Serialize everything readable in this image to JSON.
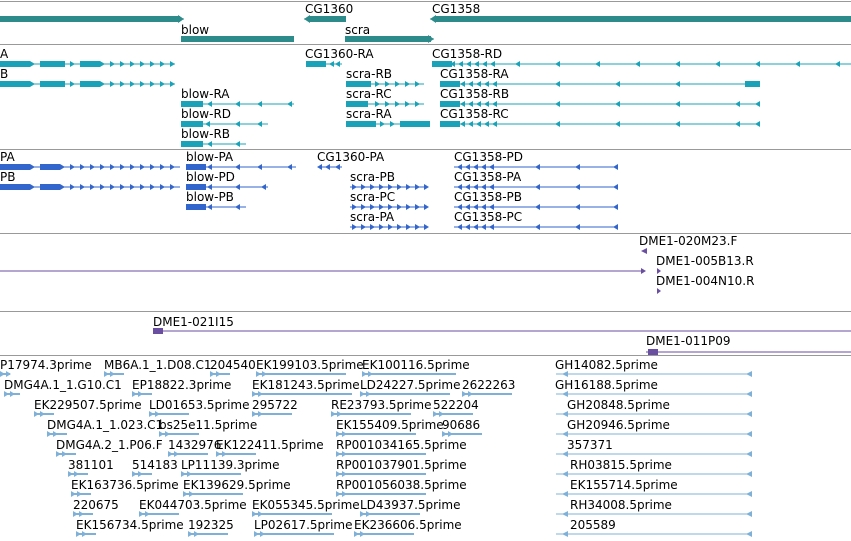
{
  "colors": {
    "gene": "#2e8b8b",
    "transcript": "#1aa3b8",
    "protein": "#3366cc",
    "clone": "#6a4ea0",
    "est": "#7fb1d8",
    "divider": "#999999"
  },
  "tracks": {
    "genes": {
      "labels": [
        "CG1360",
        "CG1358",
        "blow",
        "scra"
      ]
    },
    "transcripts": {
      "labels": [
        "A",
        "B",
        "CG1360-RA",
        "CG1358-RD",
        "scra-RB",
        "CG1358-RA",
        "blow-RA",
        "scra-RC",
        "CG1358-RB",
        "blow-RD",
        "scra-RA",
        "CG1358-RC",
        "blow-RB"
      ]
    },
    "proteins": {
      "labels": [
        "PA",
        "blow-PA",
        "CG1360-PA",
        "CG1358-PD",
        "PB",
        "blow-PD",
        "scra-PB",
        "CG1358-PA",
        "blow-PB",
        "scra-PC",
        "CG1358-PB",
        "scra-PA",
        "CG1358-PC"
      ]
    },
    "clones_a": {
      "labels": [
        "DME1-020M23.F",
        "DME1-005B13.R",
        "DME1-004N10.R"
      ]
    },
    "clones_b": {
      "labels": [
        "DME1-021I15",
        "DME1-011P09"
      ]
    },
    "ests": {
      "labels": [
        "P17974.3prime",
        "MB6A.1_1.D08.C1",
        "204540",
        "EK199103.5prime",
        "EK100116.5prime",
        "GH14082.5prime",
        "DMG4A.1_1.G10.C1",
        "EP18822.3prime",
        "EK181243.5prime",
        "LD24227.5prime",
        "2622263",
        "GH16188.5prime",
        "EK229507.5prime",
        "LD01653.5prime",
        "295722",
        "RE23793.5prime",
        "522204",
        "GH20848.5prime",
        "DMG4A.1_1.023.C1",
        "bs25e11.5prime",
        "EK155409.5prime",
        "90686",
        "GH20946.5prime",
        "DMG4A.2_1.P06.F",
        "1432976",
        "EK122411.5prime",
        "RP001034165.5prime",
        "357371",
        "381101",
        "514183",
        "LP11139.3prime",
        "RP001037901.5prime",
        "RH03815.5prime",
        "EK163736.5prime",
        "EK139629.5prime",
        "RP001056038.5prime",
        "EK155714.5prime",
        "220675",
        "EK044703.5prime",
        "EK055345.5prime",
        "LD43937.5prime",
        "RH34008.5prime",
        "EK156734.5prime",
        "192325",
        "LP02617.5prime",
        "EK236606.5prime",
        "205589"
      ]
    }
  }
}
